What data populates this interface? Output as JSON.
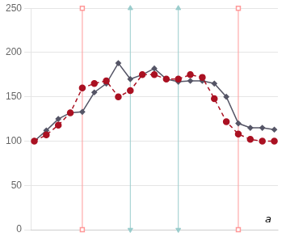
{
  "chart_data": {
    "type": "line",
    "x": [
      0,
      1,
      2,
      3,
      4,
      5,
      6,
      7,
      8,
      9,
      10,
      11,
      12,
      13,
      14,
      15,
      16,
      17,
      18,
      19,
      20
    ],
    "series": [
      {
        "type": "vline",
        "x": [
          8,
          12
        ],
        "color": "#99cccc",
        "marker": "triangle"
      },
      {
        "type": "vline",
        "x": [
          4,
          17
        ],
        "color": "#ff9999",
        "marker": "square"
      },
      {
        "type": "line",
        "color": "#555566",
        "marker": "diamond",
        "line_style": "solid",
        "values": [
          100,
          112,
          125,
          132,
          133,
          155,
          165,
          188,
          170,
          175,
          182,
          170,
          167,
          168,
          168,
          165,
          150,
          120,
          115,
          115,
          113
        ]
      },
      {
        "type": "line",
        "color": "#aa1122",
        "marker": "circle",
        "line_style": "dashed",
        "values": [
          100,
          107,
          118,
          132,
          160,
          165,
          168,
          150,
          157,
          175,
          175,
          170,
          170,
          175,
          172,
          148,
          122,
          108,
          102,
          100,
          100
        ]
      }
    ],
    "xlim": [
      -0.3,
      20.3
    ],
    "ylim": [
      0,
      250
    ],
    "yticks": [
      0,
      50,
      100,
      150,
      200,
      250
    ],
    "grid": true,
    "tick_labels": "y",
    "annotations": [
      "a"
    ]
  }
}
